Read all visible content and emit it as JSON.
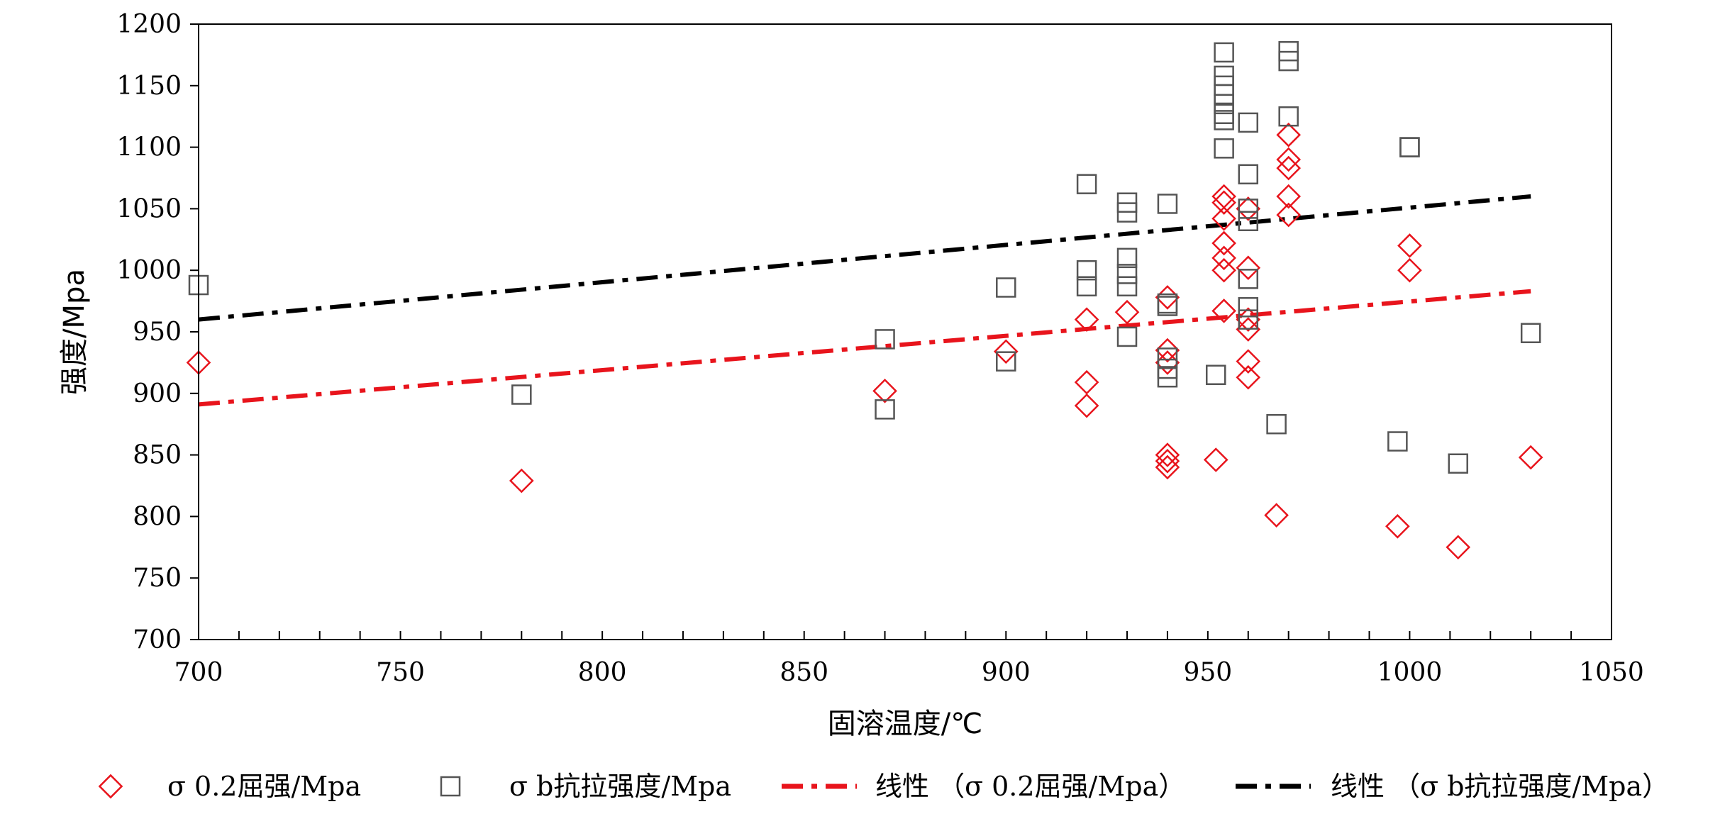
{
  "chart_data": {
    "type": "scatter",
    "title": "",
    "xlabel": "固溶温度/℃",
    "ylabel": "强度/Mpa",
    "xlim": [
      700,
      1050
    ],
    "ylim": [
      700,
      1200
    ],
    "x_ticks": [
      700,
      750,
      800,
      850,
      900,
      950,
      1000,
      1050
    ],
    "y_ticks": [
      700,
      750,
      800,
      850,
      900,
      950,
      1000,
      1050,
      1100,
      1150,
      1200
    ],
    "grid": false,
    "legend_position": "bottom",
    "series": [
      {
        "name": "σ0.2屈强/Mpa",
        "marker": "diamond",
        "color": "#e8141c",
        "points": [
          [
            700,
            925
          ],
          [
            780,
            829
          ],
          [
            870,
            902
          ],
          [
            900,
            934
          ],
          [
            920,
            960
          ],
          [
            920,
            909
          ],
          [
            920,
            890
          ],
          [
            930,
            966
          ],
          [
            940,
            978
          ],
          [
            940,
            935
          ],
          [
            940,
            925
          ],
          [
            940,
            850
          ],
          [
            940,
            845
          ],
          [
            940,
            840
          ],
          [
            952,
            846
          ],
          [
            954,
            1060
          ],
          [
            954,
            1055
          ],
          [
            954,
            1042
          ],
          [
            954,
            1022
          ],
          [
            954,
            1010
          ],
          [
            954,
            1000
          ],
          [
            954,
            967
          ],
          [
            960,
            1050
          ],
          [
            960,
            1002
          ],
          [
            960,
            960
          ],
          [
            960,
            952
          ],
          [
            960,
            926
          ],
          [
            960,
            913
          ],
          [
            967,
            801
          ],
          [
            970,
            1110
          ],
          [
            970,
            1090
          ],
          [
            970,
            1083
          ],
          [
            970,
            1060
          ],
          [
            970,
            1045
          ],
          [
            997,
            792
          ],
          [
            1000,
            1020
          ],
          [
            1000,
            1000
          ],
          [
            1012,
            775
          ],
          [
            1030,
            848
          ]
        ]
      },
      {
        "name": "σb抗拉强度/Mpa",
        "marker": "square",
        "color": "#555555",
        "points": [
          [
            700,
            988
          ],
          [
            780,
            899
          ],
          [
            870,
            944
          ],
          [
            870,
            887
          ],
          [
            900,
            986
          ],
          [
            900,
            926
          ],
          [
            920,
            1070
          ],
          [
            920,
            1000
          ],
          [
            920,
            987
          ],
          [
            930,
            1055
          ],
          [
            930,
            1047
          ],
          [
            930,
            1010
          ],
          [
            930,
            997
          ],
          [
            930,
            987
          ],
          [
            930,
            946
          ],
          [
            940,
            1054
          ],
          [
            940,
            973
          ],
          [
            940,
            971
          ],
          [
            940,
            929
          ],
          [
            940,
            920
          ],
          [
            940,
            913
          ],
          [
            952,
            915
          ],
          [
            954,
            1177
          ],
          [
            954,
            1158
          ],
          [
            954,
            1150
          ],
          [
            954,
            1143
          ],
          [
            954,
            1135
          ],
          [
            954,
            1127
          ],
          [
            954,
            1122
          ],
          [
            954,
            1099
          ],
          [
            960,
            1120
          ],
          [
            960,
            1078
          ],
          [
            960,
            1050
          ],
          [
            960,
            1040
          ],
          [
            960,
            993
          ],
          [
            960,
            970
          ],
          [
            960,
            960
          ],
          [
            967,
            875
          ],
          [
            970,
            1178
          ],
          [
            970,
            1170
          ],
          [
            970,
            1125
          ],
          [
            997,
            861
          ],
          [
            1000,
            1100
          ],
          [
            1000,
            1100
          ],
          [
            1012,
            843
          ],
          [
            1030,
            949
          ]
        ]
      }
    ],
    "trendlines": [
      {
        "name": "线性（σ0.2屈强/Mpa）",
        "color": "#e8141c",
        "x": [
          700,
          1030
        ],
        "y": [
          891,
          983
        ]
      },
      {
        "name": "线性（σb抗拉强度/Mpa）",
        "color": "#000000",
        "x": [
          700,
          1030
        ],
        "y": [
          960,
          1060
        ]
      }
    ]
  },
  "legend": {
    "items": [
      {
        "label": "σ 0.2屈强/Mpa"
      },
      {
        "label": "σ b抗拉强度/Mpa"
      },
      {
        "label": "线性 （σ 0.2屈强/Mpa）"
      },
      {
        "label": "线性 （σ b抗拉强度/Mpa）"
      }
    ]
  }
}
